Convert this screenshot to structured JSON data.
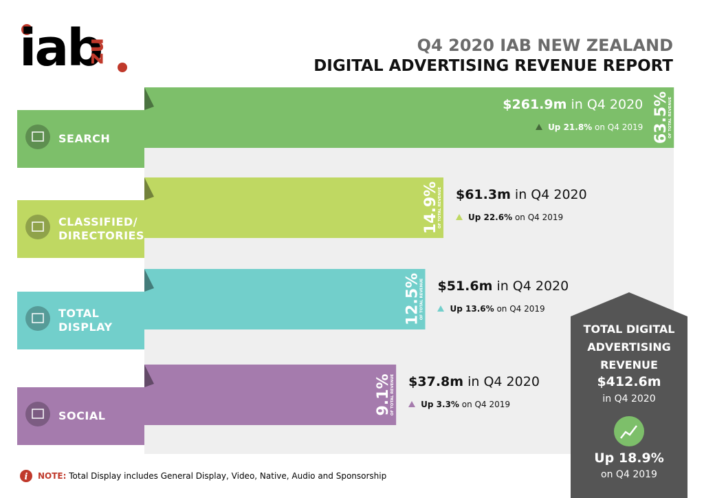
{
  "header": {
    "logo": "iab",
    "logo_suffix": "nz",
    "title": "Q4 2020 IAB NEW ZEALAND",
    "subtitle": "DIGITAL ADVERTISING REVENUE REPORT"
  },
  "chart_data": {
    "type": "bar",
    "orientation": "horizontal",
    "categories": [
      "SEARCH",
      "CLASSIFIED/\nDIRECTORIES",
      "TOTAL\nDISPLAY",
      "SOCIAL"
    ],
    "values": [
      63.5,
      14.9,
      12.5,
      9.1
    ],
    "value_labels": [
      "63.5%",
      "14.9%",
      "12.5%",
      "9.1%"
    ],
    "value_caption": "OF TOTAL REVENUE",
    "colors": [
      "#7dbf6a",
      "#bfd862",
      "#72cfcb",
      "#a57bad"
    ],
    "revenue": [
      "$261.9m",
      "$61.3m",
      "$51.6m",
      "$37.8m"
    ],
    "period": "in Q4 2020",
    "growth": [
      "Up 21.8%",
      "Up 22.6%",
      "Up 13.6%",
      "Up 3.3%"
    ],
    "growth_period": "on Q4 2019"
  },
  "total": {
    "label": "TOTAL DIGITAL ADVERTISING REVENUE",
    "value": "$412.6m",
    "period": "in Q4 2020",
    "growth": "Up 18.9%",
    "growth_period": "on Q4 2019"
  },
  "note": {
    "label": "NOTE:",
    "text": "Total Display includes General Display, Video, Native, Audio and Sponsorship"
  }
}
